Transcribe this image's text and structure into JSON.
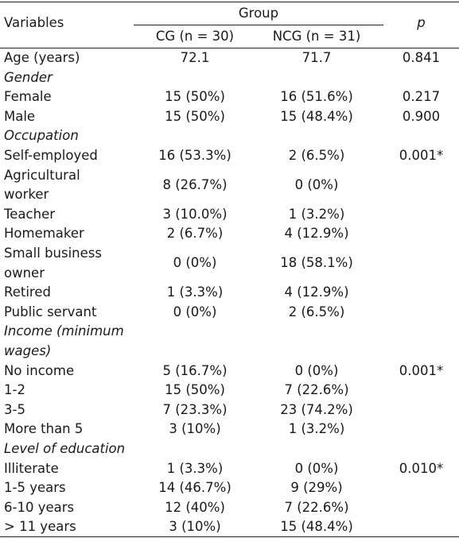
{
  "header": {
    "variables": "Variables",
    "group": "Group",
    "cg": "CG (n = 30)",
    "ncg": "NCG (n = 31)",
    "p": "p"
  },
  "rows": [
    {
      "label": [
        "Age (years)"
      ],
      "cg": "72.1",
      "ncg": "71.7",
      "p": "0.841",
      "section": false
    },
    {
      "label": [
        "Gender"
      ],
      "cg": "",
      "ncg": "",
      "p": "",
      "section": true
    },
    {
      "label": [
        "Female"
      ],
      "cg": "15 (50%)",
      "ncg": "16 (51.6%)",
      "p": "0.217",
      "section": false
    },
    {
      "label": [
        "Male"
      ],
      "cg": "15 (50%)",
      "ncg": "15 (48.4%)",
      "p": "0.900",
      "section": false
    },
    {
      "label": [
        "Occupation"
      ],
      "cg": "",
      "ncg": "",
      "p": "",
      "section": true
    },
    {
      "label": [
        "Self-employed"
      ],
      "cg": "16 (53.3%)",
      "ncg": "2 (6.5%)",
      "p": "0.001*",
      "section": false
    },
    {
      "label": [
        "Agricultural",
        "worker"
      ],
      "cg": "8 (26.7%)",
      "ncg": "0 (0%)",
      "p": "",
      "section": false
    },
    {
      "label": [
        "Teacher"
      ],
      "cg": "3 (10.0%)",
      "ncg": "1 (3.2%)",
      "p": "",
      "section": false
    },
    {
      "label": [
        "Homemaker"
      ],
      "cg": "2 (6.7%)",
      "ncg": "4 (12.9%)",
      "p": "",
      "section": false
    },
    {
      "label": [
        "Small business",
        "owner"
      ],
      "cg": "0 (0%)",
      "ncg": "18 (58.1%)",
      "p": "",
      "section": false
    },
    {
      "label": [
        "Retired"
      ],
      "cg": "1 (3.3%)",
      "ncg": "4 (12.9%)",
      "p": "",
      "section": false
    },
    {
      "label": [
        "Public servant"
      ],
      "cg": "0 (0%)",
      "ncg": "2 (6.5%)",
      "p": "",
      "section": false
    },
    {
      "label": [
        "Income (minimum",
        "wages)"
      ],
      "cg": "",
      "ncg": "",
      "p": "",
      "section": true
    },
    {
      "label": [
        "No income"
      ],
      "cg": "5 (16.7%)",
      "ncg": "0 (0%)",
      "p": "0.001*",
      "section": false
    },
    {
      "label": [
        "1-2"
      ],
      "cg": "15 (50%)",
      "ncg": "7 (22.6%)",
      "p": "",
      "section": false
    },
    {
      "label": [
        "3-5"
      ],
      "cg": "7 (23.3%)",
      "ncg": "23 (74.2%)",
      "p": "",
      "section": false
    },
    {
      "label": [
        "More than 5"
      ],
      "cg": "3 (10%)",
      "ncg": "1 (3.2%)",
      "p": "",
      "section": false
    },
    {
      "label": [
        "Level of education"
      ],
      "cg": "",
      "ncg": "",
      "p": "",
      "section": true
    },
    {
      "label": [
        "Illiterate"
      ],
      "cg": "1 (3.3%)",
      "ncg": "0 (0%)",
      "p": "0.010*",
      "section": false
    },
    {
      "label": [
        "1-5 years"
      ],
      "cg": "14 (46.7%)",
      "ncg": "9 (29%)",
      "p": "",
      "section": false
    },
    {
      "label": [
        "6-10 years"
      ],
      "cg": "12 (40%)",
      "ncg": "7 (22.6%)",
      "p": "",
      "section": false
    },
    {
      "label": [
        "> 11 years"
      ],
      "cg": "3 (10%)",
      "ncg": "15 (48.4%)",
      "p": "",
      "section": false
    }
  ]
}
